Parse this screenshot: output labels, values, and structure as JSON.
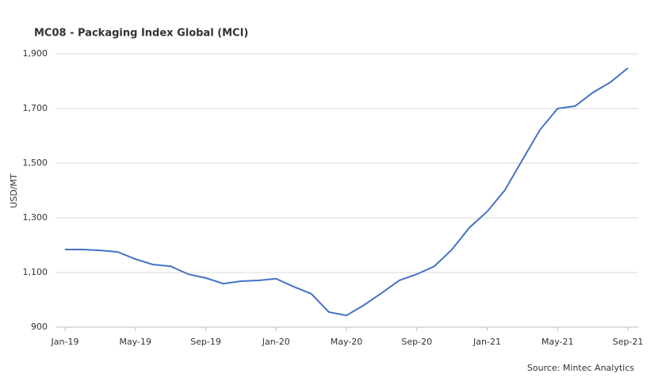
{
  "chart_data": {
    "type": "line",
    "title": "MC08 - Packaging Index Global (MCI)",
    "y_label": "USD/MT",
    "source": "Source: Mintec Analytics",
    "categories": [
      "Jan-19",
      null,
      null,
      null,
      "May-19",
      null,
      null,
      null,
      "Sep-19",
      null,
      null,
      null,
      "Jan-20",
      null,
      null,
      null,
      "May-20",
      null,
      null,
      null,
      "Sep-20",
      null,
      null,
      null,
      "Jan-21",
      null,
      null,
      null,
      "May-21",
      null,
      null,
      null,
      "Sep-21"
    ],
    "series": [
      {
        "name": "MC08 - Packaging Index Global (MCI)",
        "color": "#4472c4",
        "values": [
          1184,
          1184,
          1181,
          1175,
          1149,
          1129,
          1123,
          1094,
          1080,
          1059,
          1068,
          1071,
          1077,
          1048,
          1022,
          955,
          943,
          981,
          1025,
          1071,
          1094,
          1123,
          1184,
          1265,
          1323,
          1401,
          1512,
          1622,
          1700,
          1709,
          1758,
          1796,
          1848
        ]
      }
    ],
    "ylim": [
      900,
      1900
    ],
    "yticks": [
      {
        "value": 900,
        "label": "900"
      },
      {
        "value": 1100,
        "label": "1,100"
      },
      {
        "value": 1300,
        "label": "1,300"
      },
      {
        "value": 1500,
        "label": "1,500"
      },
      {
        "value": 1700,
        "label": "1,700"
      },
      {
        "value": 1900,
        "label": "1,900"
      }
    ],
    "grid": true
  }
}
